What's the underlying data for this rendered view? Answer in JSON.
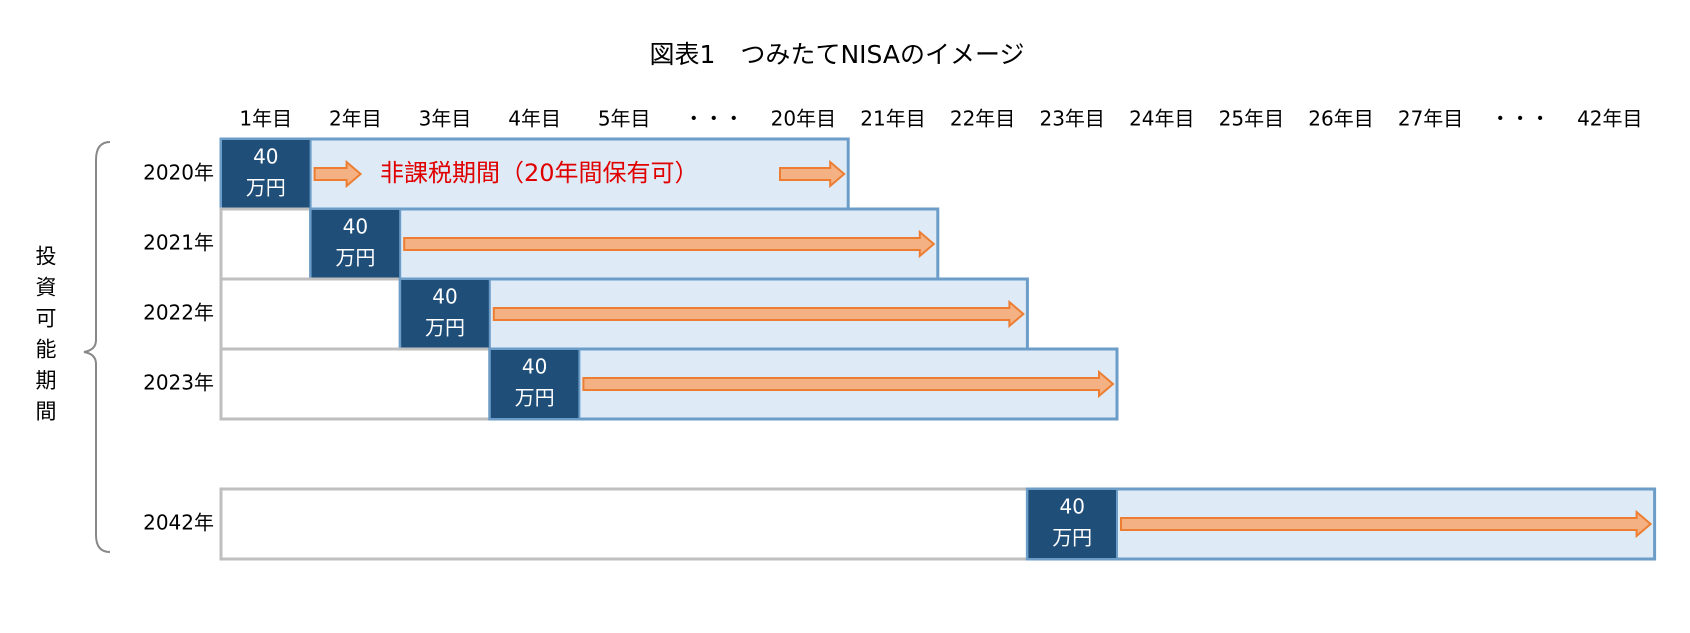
{
  "title": "図表1　つみたてNISAのイメージ",
  "side_label": "投資可能期間",
  "columns": [
    "1年目",
    "2年目",
    "3年目",
    "4年目",
    "5年目",
    "・・・",
    "20年目",
    "21年目",
    "22年目",
    "23年目",
    "24年目",
    "25年目",
    "26年目",
    "27年目",
    "・・・",
    "42年目"
  ],
  "note": "非課税期間（20年間保有可）",
  "rows": [
    {
      "label": "2020年",
      "amount": "40",
      "unit": "万円"
    },
    {
      "label": "2021年",
      "amount": "40",
      "unit": "万円"
    },
    {
      "label": "2022年",
      "amount": "40",
      "unit": "万円"
    },
    {
      "label": "2023年",
      "amount": "40",
      "unit": "万円"
    },
    {
      "label": "2042年",
      "amount": "40",
      "unit": "万円"
    }
  ]
}
